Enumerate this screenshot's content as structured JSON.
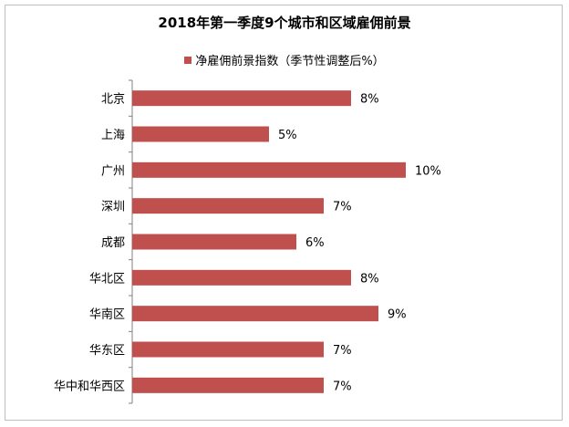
{
  "chart_data": {
    "type": "bar",
    "orientation": "horizontal",
    "title": "2018年第一季度9个城市和区域雇佣前景",
    "categories": [
      "北京",
      "上海",
      "广州",
      "深圳",
      "成都",
      "华北区",
      "华南区",
      "华东区",
      "华中和华西区"
    ],
    "series": [
      {
        "name": "净雇佣前景指数（季节性调整后%）",
        "values": [
          8,
          5,
          10,
          7,
          6,
          8,
          9,
          7,
          7
        ],
        "labels": [
          "8%",
          "5%",
          "10%",
          "7%",
          "6%",
          "8%",
          "9%",
          "7%",
          "7%"
        ],
        "color": "#c0504d"
      }
    ],
    "xlim": [
      0,
      10
    ],
    "grid": false,
    "legend_position": "top"
  }
}
